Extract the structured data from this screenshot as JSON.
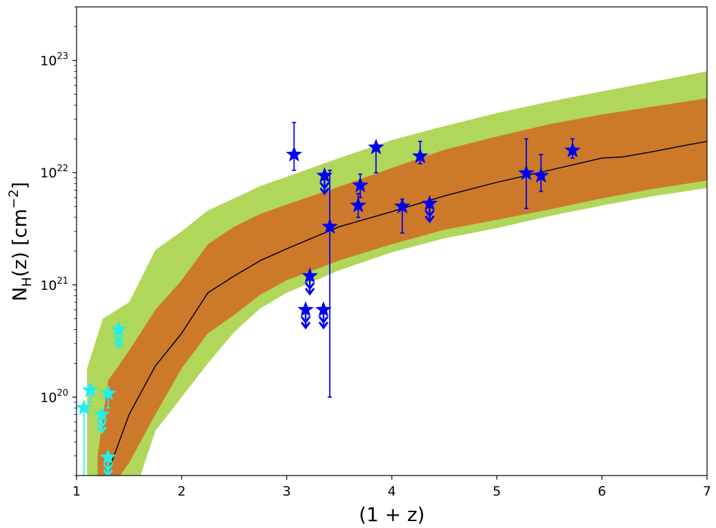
{
  "chart_data": {
    "type": "scatter",
    "title": "",
    "xlabel": "(1 + z)",
    "ylabel_main": "N",
    "ylabel_sub": "H",
    "ylabel_rest": "(z) [cm",
    "ylabel_sup": "−2",
    "ylabel_end": "]",
    "xlim": [
      1,
      7
    ],
    "ylim": [
      2e+19,
      3e+23
    ],
    "yscale": "log",
    "grid": false,
    "legend": "none",
    "x_ticks": [
      1,
      2,
      3,
      4,
      5,
      6,
      7
    ],
    "x_tick_labels": [
      "1",
      "2",
      "3",
      "4",
      "5",
      "6",
      "7"
    ],
    "y_ticks": [
      {
        "value": 1e+20,
        "base": "10",
        "exp": "20"
      },
      {
        "value": 1e+21,
        "base": "10",
        "exp": "21"
      },
      {
        "value": 1e+22,
        "base": "10",
        "exp": "22"
      },
      {
        "value": 1e+23,
        "base": "10",
        "exp": "23"
      }
    ],
    "colors": {
      "outer_band": "#b0d75a",
      "inner_band": "#cc7a2a",
      "median_line": "#000000",
      "series_blue": "#0000ee",
      "series_cyan": "#1ef0f0"
    },
    "median": {
      "x": [
        1.25,
        1.5,
        1.75,
        2.0,
        2.25,
        2.5,
        2.75,
        3.0,
        3.5,
        4.0,
        4.5,
        5.0,
        5.5,
        6.0,
        6.2,
        6.5,
        6.75,
        7.0
      ],
      "y": [
        1.6e+19,
        7e+19,
        1.9e+20,
        3.7e+20,
        8.5e+20,
        1.2e+21,
        1.65e+21,
        2.1e+21,
        3.3e+21,
        4.5e+21,
        6.2e+21,
        8.2e+21,
        1.05e+22,
        1.35e+22,
        1.38e+22,
        1.55e+22,
        1.72e+22,
        1.9e+22
      ]
    },
    "inner_band": {
      "x": [
        1.2,
        1.3,
        1.5,
        1.75,
        2.0,
        2.25,
        2.5,
        2.75,
        3.0,
        3.5,
        4.0,
        4.5,
        5.0,
        5.5,
        6.0,
        6.5,
        7.0
      ],
      "upper": [
        3e+19,
        1.4e+20,
        2.6e+20,
        6e+20,
        1.1e+21,
        2.3e+21,
        3.3e+21,
        4.3e+21,
        5.2e+21,
        7.5e+21,
        1.1e+22,
        1.6e+22,
        2.1e+22,
        2.7e+22,
        3.3e+22,
        3.9e+22,
        4.6e+22
      ],
      "lower": [
        1e+19,
        1.4e+19,
        2.6e+19,
        7e+19,
        1.8e+20,
        3.7e+20,
        5.4e+20,
        8.2e+20,
        1.1e+21,
        1.65e+21,
        2.3e+21,
        3.1e+21,
        3.8e+21,
        4.7e+21,
        5.9e+21,
        7.2e+21,
        8.5e+21
      ]
    },
    "outer_band": {
      "x": [
        1.1,
        1.25,
        1.5,
        1.75,
        2.0,
        2.25,
        2.5,
        2.75,
        3.0,
        3.5,
        4.0,
        4.5,
        5.0,
        5.5,
        6.0,
        6.5,
        7.0
      ],
      "upper": [
        1.8e+20,
        5e+20,
        7e+20,
        2.05e+21,
        3e+21,
        4.6e+21,
        5.9e+21,
        7.6e+21,
        9.2e+21,
        1.35e+22,
        1.95e+22,
        2.6e+22,
        3.4e+22,
        4.3e+22,
        5.3e+22,
        6.5e+22,
        8e+22
      ],
      "lower": [
        1e+19,
        1e+19,
        1e+19,
        5e+19,
        1e+20,
        2e+20,
        3.8e+20,
        6.2e+20,
        8.5e+20,
        1.35e+21,
        1.95e+21,
        2.6e+21,
        3.2e+21,
        4.1e+21,
        5.1e+21,
        6.2e+21,
        7.3e+21
      ]
    },
    "series": [
      {
        "color": "#0000ee",
        "points": [
          {
            "x": 3.07,
            "y": 1.45e+22,
            "yerr_low": 1.05e+22,
            "yerr_high": 2.8e+22
          },
          {
            "x": 3.36,
            "y": 9.4e+21,
            "upper_limit": true
          },
          {
            "x": 3.41,
            "y": 3.3e+21,
            "yerr_low": 1e+20,
            "yerr_high": 1.05e+22
          },
          {
            "x": 3.22,
            "y": 1.2e+21,
            "upper_limit": true
          },
          {
            "x": 3.18,
            "y": 6e+20,
            "upper_limit": true
          },
          {
            "x": 3.35,
            "y": 6e+20,
            "upper_limit": true
          },
          {
            "x": 3.68,
            "y": 5.1e+21,
            "yerr_low": 4e+21,
            "yerr_high": 6.5e+21
          },
          {
            "x": 3.7,
            "y": 7.7e+21,
            "yerr_low": 6e+21,
            "yerr_high": 9.7e+21
          },
          {
            "x": 3.85,
            "y": 1.68e+22,
            "yerr_low": 1e+22,
            "yerr_high": 1.8e+22
          },
          {
            "x": 4.1,
            "y": 5e+21,
            "yerr_low": 2.9e+21,
            "yerr_high": 5.8e+21
          },
          {
            "x": 4.27,
            "y": 1.4e+22,
            "yerr_low": 1.2e+22,
            "yerr_high": 1.9e+22
          },
          {
            "x": 4.36,
            "y": 5.3e+21,
            "upper_limit": true
          },
          {
            "x": 5.28,
            "y": 9.9e+21,
            "yerr_low": 4.8e+21,
            "yerr_high": 2e+22
          },
          {
            "x": 5.42,
            "y": 9.4e+21,
            "yerr_low": 6.8e+21,
            "yerr_high": 1.45e+22
          },
          {
            "x": 5.72,
            "y": 1.58e+22,
            "yerr_low": 1.35e+22,
            "yerr_high": 2e+22
          }
        ]
      },
      {
        "color": "#1ef0f0",
        "points": [
          {
            "x": 1.07,
            "y": 8e+19,
            "yerr_low": 1e+19,
            "yerr_high": 8e+19
          },
          {
            "x": 1.13,
            "y": 1.15e+20,
            "yerr_low": 9e+19,
            "yerr_high": 1.3e+20
          },
          {
            "x": 1.24,
            "y": 7e+19,
            "upper_limit": true
          },
          {
            "x": 1.3,
            "y": 1.08e+20,
            "yerr_low": 8e+19,
            "yerr_high": 1.2e+20
          },
          {
            "x": 1.4,
            "y": 4e+20,
            "upper_limit": true
          },
          {
            "x": 1.3,
            "y": 2.9e+19,
            "upper_limit": true
          }
        ]
      }
    ]
  }
}
